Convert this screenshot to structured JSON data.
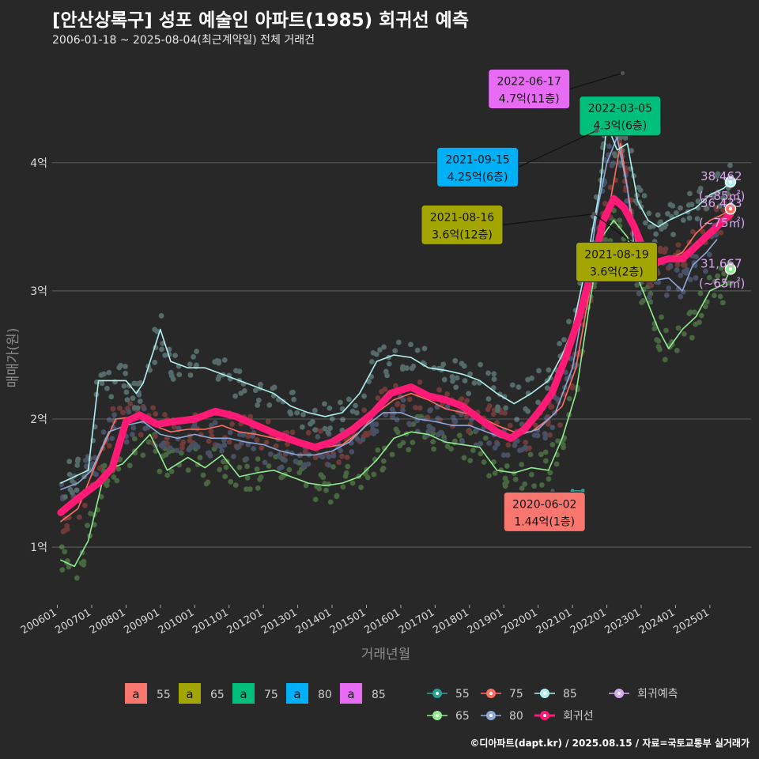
{
  "title": "[안산상록구] 성포 예술인 아파트(1985) 회귀선 예측",
  "subtitle": "2006-01-18 ~ 2025-08-04(최근계약일) 전체 거래건",
  "credit": "©디아파트(dapt.kr) / 2025.08.15 / 자료=국토교통부 실거래가",
  "colors": {
    "background": "#282828",
    "grid": "#6b6b6b",
    "s55": "#f8766d",
    "s65": "#a3a500",
    "s75": "#00bf7d",
    "s80": "#00b0f6",
    "s85": "#e76bf3",
    "line55": "#2aa198",
    "line65": "#90ee90",
    "line75": "#ff6f61",
    "line80": "#8fa8d8",
    "line85": "#b0f0f0",
    "regression": "#ff1a75",
    "forecast": "#d8a8f0"
  },
  "chart_data": {
    "type": "line",
    "xlabel": "거래년월",
    "ylabel": "매매가(원)",
    "x_ticks": [
      "200601",
      "200701",
      "200801",
      "200901",
      "201001",
      "201101",
      "201201",
      "201301",
      "201401",
      "201501",
      "201601",
      "201701",
      "201801",
      "201901",
      "202001",
      "202101",
      "202201",
      "202301",
      "202401",
      "202501"
    ],
    "y_ticks": [
      {
        "value": 1,
        "label": "1억"
      },
      {
        "value": 2,
        "label": "2억"
      },
      {
        "value": 3,
        "label": "3억"
      },
      {
        "value": 4,
        "label": "4억"
      }
    ],
    "ylim": [
      0.55,
      4.9
    ],
    "xlim": [
      2005.85,
      2026.2
    ],
    "grid": true,
    "series": [
      {
        "name": "55",
        "key": "line55",
        "points": [
          [
            2021.0,
            1.44
          ],
          [
            2021.3,
            1.44
          ]
        ]
      },
      {
        "name": "65",
        "key": "line65",
        "points": [
          [
            2006.1,
            0.9
          ],
          [
            2006.5,
            0.85
          ],
          [
            2006.9,
            1.05
          ],
          [
            2007.3,
            1.5
          ],
          [
            2007.6,
            1.62
          ],
          [
            2007.9,
            1.65
          ],
          [
            2008.7,
            1.88
          ],
          [
            2009.2,
            1.6
          ],
          [
            2009.8,
            1.7
          ],
          [
            2010.3,
            1.62
          ],
          [
            2010.8,
            1.72
          ],
          [
            2011.3,
            1.55
          ],
          [
            2011.8,
            1.58
          ],
          [
            2012.3,
            1.6
          ],
          [
            2012.8,
            1.55
          ],
          [
            2013.3,
            1.5
          ],
          [
            2013.8,
            1.48
          ],
          [
            2014.3,
            1.5
          ],
          [
            2014.8,
            1.55
          ],
          [
            2015.3,
            1.68
          ],
          [
            2015.8,
            1.85
          ],
          [
            2016.3,
            1.9
          ],
          [
            2016.8,
            1.88
          ],
          [
            2017.3,
            1.82
          ],
          [
            2017.8,
            1.8
          ],
          [
            2018.3,
            1.78
          ],
          [
            2018.8,
            1.6
          ],
          [
            2019.3,
            1.58
          ],
          [
            2019.8,
            1.62
          ],
          [
            2020.3,
            1.6
          ],
          [
            2020.7,
            1.85
          ],
          [
            2021.1,
            2.2
          ],
          [
            2021.5,
            2.9
          ],
          [
            2021.8,
            3.4
          ],
          [
            2022.2,
            3.55
          ],
          [
            2022.6,
            3.42
          ],
          [
            2022.9,
            3.1
          ],
          [
            2023.2,
            2.9
          ],
          [
            2023.5,
            2.7
          ],
          [
            2023.8,
            2.55
          ],
          [
            2024.2,
            2.7
          ],
          [
            2024.6,
            2.8
          ],
          [
            2025.0,
            3.0
          ],
          [
            2025.4,
            3.05
          ],
          [
            2025.6,
            3.17
          ]
        ]
      },
      {
        "name": "75",
        "key": "line75",
        "points": [
          [
            2006.1,
            1.2
          ],
          [
            2006.6,
            1.3
          ],
          [
            2007.2,
            1.7
          ],
          [
            2007.7,
            2.0
          ],
          [
            2008.3,
            2.02
          ],
          [
            2008.8,
            1.95
          ],
          [
            2009.3,
            1.9
          ],
          [
            2009.8,
            1.92
          ],
          [
            2010.3,
            1.92
          ],
          [
            2010.8,
            1.95
          ],
          [
            2011.3,
            1.9
          ],
          [
            2011.8,
            1.88
          ],
          [
            2012.3,
            1.85
          ],
          [
            2012.8,
            1.82
          ],
          [
            2013.3,
            1.8
          ],
          [
            2013.8,
            1.78
          ],
          [
            2014.3,
            1.8
          ],
          [
            2014.8,
            1.9
          ],
          [
            2015.3,
            2.05
          ],
          [
            2015.8,
            2.15
          ],
          [
            2016.3,
            2.2
          ],
          [
            2016.8,
            2.15
          ],
          [
            2017.3,
            2.08
          ],
          [
            2017.8,
            2.05
          ],
          [
            2018.3,
            2.02
          ],
          [
            2018.8,
            1.95
          ],
          [
            2019.3,
            1.9
          ],
          [
            2019.8,
            1.9
          ],
          [
            2020.3,
            2.0
          ],
          [
            2020.7,
            2.1
          ],
          [
            2021.1,
            2.4
          ],
          [
            2021.5,
            3.0
          ],
          [
            2021.8,
            3.45
          ],
          [
            2022.1,
            3.7
          ],
          [
            2022.4,
            4.15
          ],
          [
            2022.6,
            3.8
          ],
          [
            2022.9,
            3.3
          ],
          [
            2023.2,
            3.15
          ],
          [
            2023.5,
            3.2
          ],
          [
            2023.8,
            3.25
          ],
          [
            2024.2,
            3.3
          ],
          [
            2024.6,
            3.45
          ],
          [
            2025.0,
            3.55
          ],
          [
            2025.4,
            3.6
          ],
          [
            2025.6,
            3.64
          ]
        ]
      },
      {
        "name": "80",
        "key": "line80",
        "points": [
          [
            2006.1,
            1.45
          ],
          [
            2006.6,
            1.5
          ],
          [
            2007.0,
            1.6
          ],
          [
            2007.5,
            1.9
          ],
          [
            2008.0,
            1.95
          ],
          [
            2008.5,
            1.98
          ],
          [
            2009.0,
            1.88
          ],
          [
            2009.5,
            1.85
          ],
          [
            2010.0,
            1.88
          ],
          [
            2010.5,
            1.85
          ],
          [
            2011.0,
            1.85
          ],
          [
            2011.5,
            1.82
          ],
          [
            2012.0,
            1.8
          ],
          [
            2012.5,
            1.75
          ],
          [
            2013.0,
            1.72
          ],
          [
            2013.5,
            1.72
          ],
          [
            2014.0,
            1.75
          ],
          [
            2014.5,
            1.82
          ],
          [
            2015.0,
            1.95
          ],
          [
            2015.5,
            2.05
          ],
          [
            2016.0,
            2.05
          ],
          [
            2016.5,
            2.0
          ],
          [
            2017.0,
            1.98
          ],
          [
            2017.5,
            1.95
          ],
          [
            2018.0,
            1.95
          ],
          [
            2018.5,
            1.9
          ],
          [
            2019.0,
            1.85
          ],
          [
            2019.5,
            1.88
          ],
          [
            2020.0,
            1.92
          ],
          [
            2020.5,
            2.05
          ],
          [
            2021.0,
            2.4
          ],
          [
            2021.4,
            3.0
          ],
          [
            2021.7,
            3.6
          ],
          [
            2022.0,
            4.0
          ],
          [
            2022.3,
            4.2
          ],
          [
            2022.6,
            3.8
          ],
          [
            2022.9,
            3.1
          ],
          [
            2023.3,
            3.08
          ],
          [
            2023.8,
            3.1
          ],
          [
            2024.2,
            3.0
          ],
          [
            2024.5,
            3.2
          ],
          [
            2024.9,
            3.3
          ],
          [
            2025.2,
            3.4
          ]
        ]
      },
      {
        "name": "85",
        "key": "line85",
        "points": [
          [
            2006.1,
            1.5
          ],
          [
            2006.5,
            1.55
          ],
          [
            2006.9,
            1.6
          ],
          [
            2007.2,
            2.3
          ],
          [
            2007.6,
            2.3
          ],
          [
            2008.0,
            2.3
          ],
          [
            2008.3,
            2.2
          ],
          [
            2008.5,
            2.28
          ],
          [
            2009.0,
            2.7
          ],
          [
            2009.3,
            2.45
          ],
          [
            2009.8,
            2.4
          ],
          [
            2010.3,
            2.4
          ],
          [
            2010.8,
            2.35
          ],
          [
            2011.3,
            2.3
          ],
          [
            2011.8,
            2.25
          ],
          [
            2012.3,
            2.2
          ],
          [
            2012.8,
            2.1
          ],
          [
            2013.3,
            2.05
          ],
          [
            2013.8,
            2.02
          ],
          [
            2014.3,
            2.05
          ],
          [
            2014.8,
            2.2
          ],
          [
            2015.3,
            2.45
          ],
          [
            2015.8,
            2.5
          ],
          [
            2016.3,
            2.48
          ],
          [
            2016.8,
            2.4
          ],
          [
            2017.3,
            2.38
          ],
          [
            2017.8,
            2.35
          ],
          [
            2018.3,
            2.3
          ],
          [
            2018.8,
            2.2
          ],
          [
            2019.3,
            2.12
          ],
          [
            2019.8,
            2.2
          ],
          [
            2020.3,
            2.3
          ],
          [
            2020.7,
            2.5
          ],
          [
            2021.0,
            2.7
          ],
          [
            2021.4,
            3.2
          ],
          [
            2021.8,
            3.8
          ],
          [
            2022.0,
            4.3
          ],
          [
            2022.3,
            4.1
          ],
          [
            2022.6,
            4.15
          ],
          [
            2022.9,
            3.7
          ],
          [
            2023.2,
            3.55
          ],
          [
            2023.5,
            3.5
          ],
          [
            2023.8,
            3.55
          ],
          [
            2024.2,
            3.6
          ],
          [
            2024.6,
            3.65
          ],
          [
            2025.0,
            3.75
          ],
          [
            2025.4,
            3.8
          ],
          [
            2025.6,
            3.85
          ]
        ]
      },
      {
        "name": "회귀선",
        "key": "regression",
        "points": [
          [
            2006.1,
            1.27
          ],
          [
            2006.6,
            1.38
          ],
          [
            2007.2,
            1.5
          ],
          [
            2007.6,
            1.62
          ],
          [
            2008.0,
            1.98
          ],
          [
            2008.4,
            2.03
          ],
          [
            2008.9,
            1.96
          ],
          [
            2009.4,
            1.98
          ],
          [
            2010.0,
            2.0
          ],
          [
            2010.6,
            2.06
          ],
          [
            2011.2,
            2.02
          ],
          [
            2011.8,
            1.95
          ],
          [
            2012.4,
            1.88
          ],
          [
            2013.0,
            1.82
          ],
          [
            2013.5,
            1.78
          ],
          [
            2014.0,
            1.82
          ],
          [
            2014.6,
            1.92
          ],
          [
            2015.2,
            2.05
          ],
          [
            2015.7,
            2.2
          ],
          [
            2016.3,
            2.25
          ],
          [
            2016.8,
            2.18
          ],
          [
            2017.3,
            2.15
          ],
          [
            2017.8,
            2.1
          ],
          [
            2018.3,
            2.0
          ],
          [
            2018.8,
            1.9
          ],
          [
            2019.2,
            1.85
          ],
          [
            2019.6,
            1.92
          ],
          [
            2020.0,
            2.05
          ],
          [
            2020.4,
            2.2
          ],
          [
            2020.8,
            2.48
          ],
          [
            2021.2,
            2.8
          ],
          [
            2021.6,
            3.2
          ],
          [
            2021.9,
            3.55
          ],
          [
            2022.2,
            3.72
          ],
          [
            2022.5,
            3.65
          ],
          [
            2022.8,
            3.5
          ],
          [
            2023.1,
            3.3
          ],
          [
            2023.4,
            3.22
          ],
          [
            2023.8,
            3.25
          ],
          [
            2024.2,
            3.25
          ],
          [
            2024.6,
            3.35
          ],
          [
            2025.0,
            3.45
          ],
          [
            2025.4,
            3.55
          ],
          [
            2025.6,
            3.6
          ]
        ]
      }
    ],
    "forecasts": [
      {
        "x": 2025.6,
        "y": 3.85,
        "value": "38,462",
        "area": "(~85㎡)",
        "key": "line85"
      },
      {
        "x": 2025.6,
        "y": 3.64,
        "value": "36,433",
        "area": "(~75㎡)",
        "key": "line75"
      },
      {
        "x": 2025.6,
        "y": 3.17,
        "value": "31,667",
        "area": "(~65㎡)",
        "key": "line65"
      }
    ],
    "annotations": [
      {
        "date": "2022-06-17",
        "price": "4.7억(11층)",
        "key": "s85",
        "x": 2022.46,
        "y": 4.7,
        "lx": 2018.55,
        "ly": 4.73
      },
      {
        "date": "2022-03-05",
        "price": "4.3억(6층)",
        "key": "s75",
        "x": 2022.17,
        "y": 4.3,
        "lx": 2021.2,
        "ly": 4.52
      },
      {
        "date": "2021-09-15",
        "price": "4.25억(6층)",
        "key": "s80",
        "x": 2021.7,
        "y": 4.25,
        "lx": 2017.05,
        "ly": 4.12
      },
      {
        "date": "2021-08-16",
        "price": "3.6억(12층)",
        "key": "s65",
        "x": 2021.62,
        "y": 3.6,
        "lx": 2016.6,
        "ly": 3.67
      },
      {
        "date": "2021-08-19",
        "price": "3.6억(2층)",
        "key": "s65",
        "x": 2021.63,
        "y": 3.6,
        "lx": 2021.1,
        "ly": 3.38
      },
      {
        "date": "2020-06-02",
        "price": "1.44억(1층)",
        "key": "s55",
        "x": 2020.42,
        "y": 1.44,
        "lx": 2019.0,
        "ly": 1.43
      }
    ],
    "legend_fill": [
      {
        "label": "55",
        "key": "s55"
      },
      {
        "label": "65",
        "key": "s65"
      },
      {
        "label": "75",
        "key": "s75"
      },
      {
        "label": "80",
        "key": "s80"
      },
      {
        "label": "85",
        "key": "s85"
      }
    ],
    "legend_lines": [
      {
        "label": "55",
        "key": "line55"
      },
      {
        "label": "75",
        "key": "line75"
      },
      {
        "label": "85",
        "key": "line85"
      },
      {
        "label": "회귀예측",
        "key": "forecast"
      },
      {
        "label": "65",
        "key": "line65"
      },
      {
        "label": "80",
        "key": "line80"
      },
      {
        "label": "회귀선",
        "key": "regression"
      }
    ],
    "legend_position": "bottom"
  }
}
